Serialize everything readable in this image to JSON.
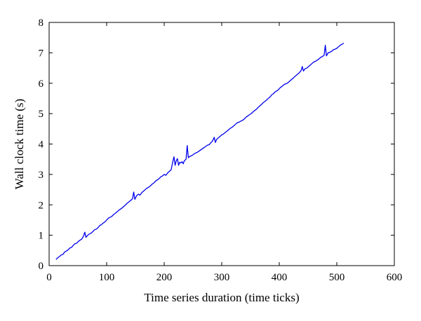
{
  "chart_data": {
    "type": "line",
    "title": "",
    "xlabel": "Time series duration (time ticks)",
    "ylabel": "Wall clock time (s)",
    "xlim": [
      0,
      600
    ],
    "ylim": [
      0,
      8
    ],
    "xticks": [
      0,
      100,
      200,
      300,
      400,
      500,
      600
    ],
    "yticks": [
      0,
      1,
      2,
      3,
      4,
      5,
      6,
      7,
      8
    ],
    "grid": false,
    "box": true,
    "series": [
      {
        "color": "#0000ee",
        "points": [
          [
            12,
            0.2
          ],
          [
            15,
            0.26
          ],
          [
            18,
            0.3
          ],
          [
            21,
            0.35
          ],
          [
            24,
            0.37
          ],
          [
            27,
            0.45
          ],
          [
            30,
            0.48
          ],
          [
            33,
            0.52
          ],
          [
            36,
            0.58
          ],
          [
            39,
            0.6
          ],
          [
            42,
            0.67
          ],
          [
            45,
            0.72
          ],
          [
            48,
            0.74
          ],
          [
            51,
            0.8
          ],
          [
            54,
            0.84
          ],
          [
            57,
            0.88
          ],
          [
            60,
            0.98
          ],
          [
            62,
            1.1
          ],
          [
            64,
            0.93
          ],
          [
            67,
            1.0
          ],
          [
            70,
            1.04
          ],
          [
            73,
            1.07
          ],
          [
            76,
            1.12
          ],
          [
            79,
            1.18
          ],
          [
            82,
            1.2
          ],
          [
            85,
            1.25
          ],
          [
            88,
            1.32
          ],
          [
            91,
            1.35
          ],
          [
            94,
            1.4
          ],
          [
            97,
            1.44
          ],
          [
            100,
            1.5
          ],
          [
            103,
            1.56
          ],
          [
            106,
            1.59
          ],
          [
            109,
            1.62
          ],
          [
            112,
            1.68
          ],
          [
            115,
            1.72
          ],
          [
            118,
            1.77
          ],
          [
            121,
            1.82
          ],
          [
            124,
            1.86
          ],
          [
            127,
            1.9
          ],
          [
            130,
            1.95
          ],
          [
            133,
            2.0
          ],
          [
            136,
            2.06
          ],
          [
            139,
            2.1
          ],
          [
            142,
            2.15
          ],
          [
            145,
            2.2
          ],
          [
            147,
            2.42
          ],
          [
            149,
            2.18
          ],
          [
            152,
            2.3
          ],
          [
            155,
            2.35
          ],
          [
            158,
            2.32
          ],
          [
            161,
            2.4
          ],
          [
            164,
            2.45
          ],
          [
            167,
            2.5
          ],
          [
            170,
            2.55
          ],
          [
            173,
            2.58
          ],
          [
            176,
            2.62
          ],
          [
            179,
            2.68
          ],
          [
            182,
            2.72
          ],
          [
            185,
            2.78
          ],
          [
            188,
            2.82
          ],
          [
            191,
            2.86
          ],
          [
            194,
            2.92
          ],
          [
            197,
            2.95
          ],
          [
            200,
            3.0
          ],
          [
            203,
            2.97
          ],
          [
            206,
            3.05
          ],
          [
            209,
            3.1
          ],
          [
            212,
            3.15
          ],
          [
            215,
            3.42
          ],
          [
            217,
            3.58
          ],
          [
            219,
            3.3
          ],
          [
            221,
            3.45
          ],
          [
            223,
            3.52
          ],
          [
            225,
            3.3
          ],
          [
            227,
            3.4
          ],
          [
            229,
            3.38
          ],
          [
            231,
            3.42
          ],
          [
            233,
            3.35
          ],
          [
            235,
            3.45
          ],
          [
            238,
            3.5
          ],
          [
            240,
            3.95
          ],
          [
            242,
            3.55
          ],
          [
            245,
            3.6
          ],
          [
            248,
            3.62
          ],
          [
            251,
            3.66
          ],
          [
            254,
            3.7
          ],
          [
            257,
            3.72
          ],
          [
            260,
            3.76
          ],
          [
            263,
            3.8
          ],
          [
            266,
            3.84
          ],
          [
            269,
            3.88
          ],
          [
            272,
            3.92
          ],
          [
            275,
            3.96
          ],
          [
            278,
            3.98
          ],
          [
            281,
            4.04
          ],
          [
            284,
            4.1
          ],
          [
            287,
            4.22
          ],
          [
            289,
            4.05
          ],
          [
            291,
            4.15
          ],
          [
            294,
            4.2
          ],
          [
            297,
            4.25
          ],
          [
            300,
            4.3
          ],
          [
            303,
            4.33
          ],
          [
            306,
            4.38
          ],
          [
            309,
            4.42
          ],
          [
            312,
            4.47
          ],
          [
            315,
            4.52
          ],
          [
            318,
            4.55
          ],
          [
            321,
            4.6
          ],
          [
            324,
            4.65
          ],
          [
            327,
            4.7
          ],
          [
            330,
            4.72
          ],
          [
            333,
            4.75
          ],
          [
            336,
            4.78
          ],
          [
            339,
            4.82
          ],
          [
            342,
            4.88
          ],
          [
            345,
            4.92
          ],
          [
            348,
            4.96
          ],
          [
            351,
            5.0
          ],
          [
            354,
            5.05
          ],
          [
            357,
            5.1
          ],
          [
            360,
            5.14
          ],
          [
            363,
            5.2
          ],
          [
            366,
            5.25
          ],
          [
            369,
            5.3
          ],
          [
            372,
            5.36
          ],
          [
            375,
            5.4
          ],
          [
            378,
            5.45
          ],
          [
            381,
            5.5
          ],
          [
            384,
            5.55
          ],
          [
            387,
            5.62
          ],
          [
            390,
            5.66
          ],
          [
            393,
            5.72
          ],
          [
            396,
            5.75
          ],
          [
            399,
            5.8
          ],
          [
            402,
            5.86
          ],
          [
            405,
            5.9
          ],
          [
            408,
            5.95
          ],
          [
            411,
            5.98
          ],
          [
            414,
            6.0
          ],
          [
            417,
            6.05
          ],
          [
            420,
            6.1
          ],
          [
            423,
            6.15
          ],
          [
            426,
            6.2
          ],
          [
            429,
            6.25
          ],
          [
            432,
            6.3
          ],
          [
            435,
            6.35
          ],
          [
            438,
            6.42
          ],
          [
            440,
            6.55
          ],
          [
            442,
            6.4
          ],
          [
            445,
            6.48
          ],
          [
            448,
            6.5
          ],
          [
            451,
            6.55
          ],
          [
            454,
            6.6
          ],
          [
            457,
            6.65
          ],
          [
            460,
            6.7
          ],
          [
            463,
            6.72
          ],
          [
            466,
            6.76
          ],
          [
            469,
            6.8
          ],
          [
            472,
            6.85
          ],
          [
            475,
            6.88
          ],
          [
            478,
            6.92
          ],
          [
            480,
            7.25
          ],
          [
            482,
            6.9
          ],
          [
            485,
            7.0
          ],
          [
            488,
            7.02
          ],
          [
            491,
            7.05
          ],
          [
            494,
            7.1
          ],
          [
            497,
            7.12
          ],
          [
            500,
            7.15
          ],
          [
            503,
            7.2
          ],
          [
            506,
            7.25
          ],
          [
            509,
            7.28
          ],
          [
            512,
            7.32
          ]
        ]
      }
    ]
  }
}
